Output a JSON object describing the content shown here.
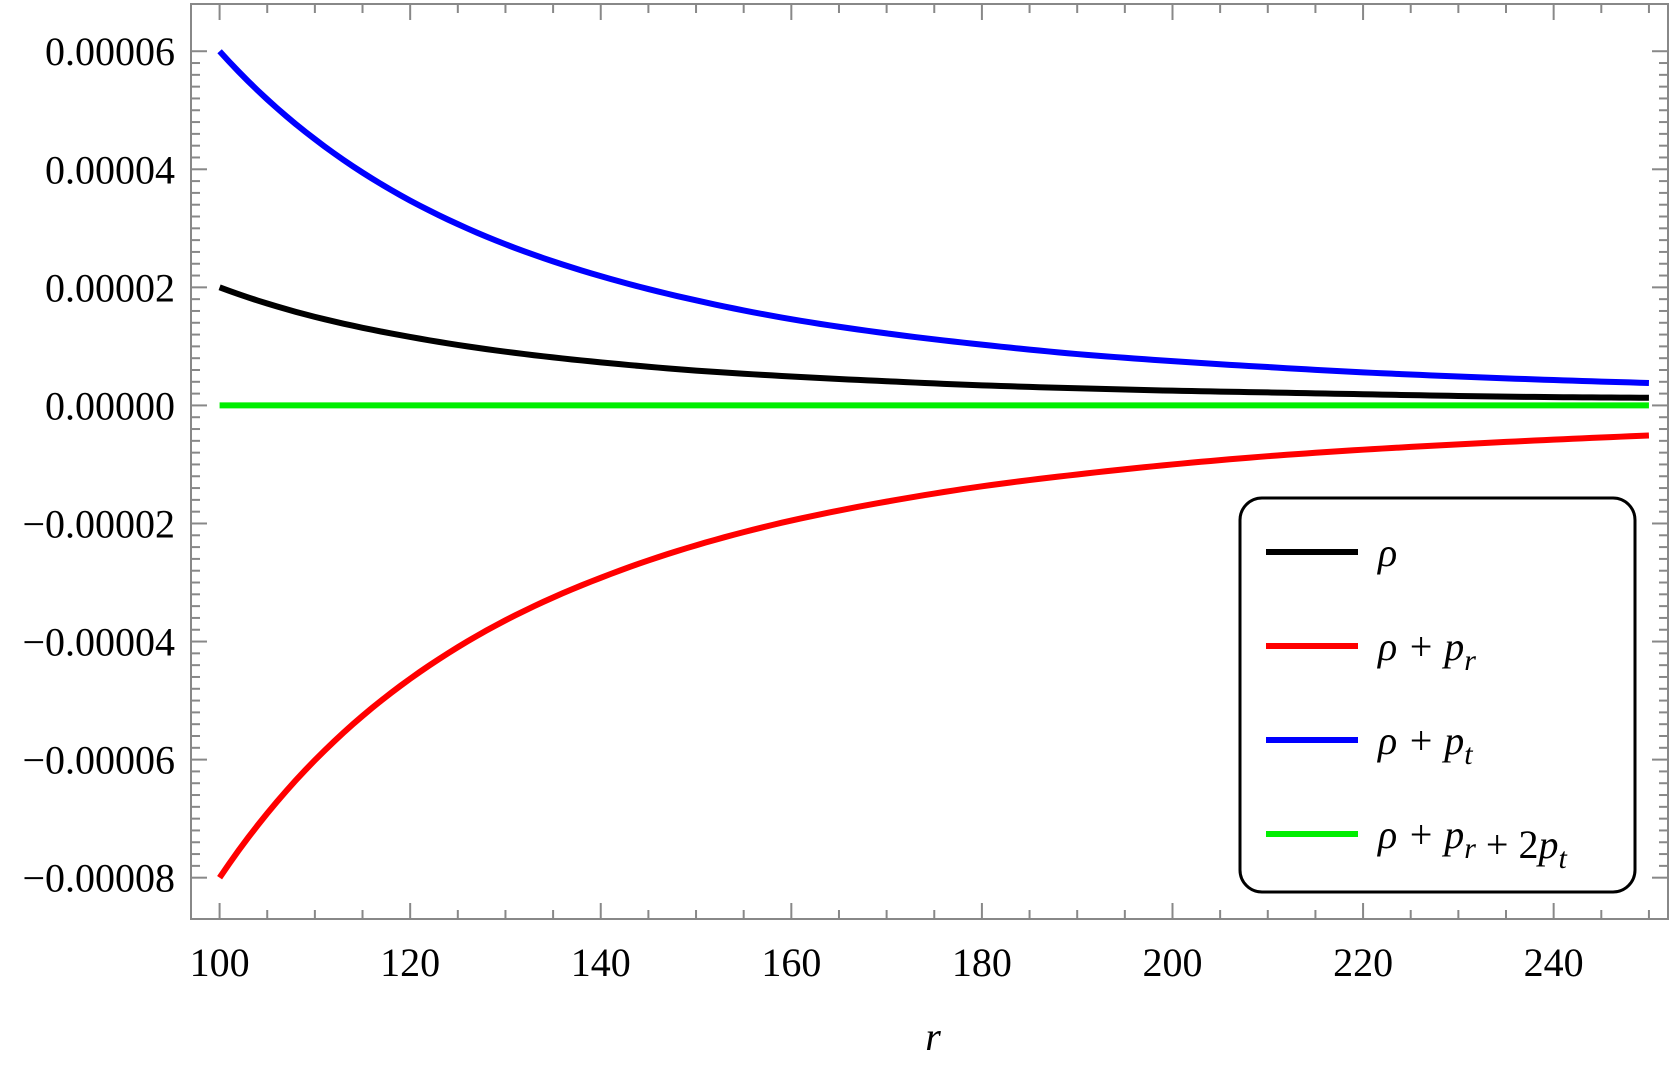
{
  "chart_data": {
    "type": "line",
    "title": "",
    "xlabel": "r",
    "ylabel": "",
    "xlim": [
      97,
      252
    ],
    "ylim": [
      -8.7e-05,
      6.8e-05
    ],
    "x_ticks": [
      100,
      120,
      140,
      160,
      180,
      200,
      220,
      240
    ],
    "x_tick_labels": [
      "100",
      "120",
      "140",
      "160",
      "180",
      "200",
      "220",
      "240"
    ],
    "y_ticks": [
      6e-05,
      4e-05,
      2e-05,
      0.0,
      -2e-05,
      -4e-05,
      -6e-05,
      -8e-05
    ],
    "y_tick_labels": [
      "0.00006",
      "0.00004",
      "0.00002",
      "0.00000",
      "−0.00002",
      "−0.00004",
      "−0.00006",
      "−0.00008"
    ],
    "grid": false,
    "legend_position": "bottom-right",
    "series": [
      {
        "name": "ρ",
        "color": "#000000",
        "x": [
          100,
          110,
          120,
          130,
          140,
          150,
          160,
          170,
          180,
          190,
          200,
          210,
          220,
          230,
          240,
          250
        ],
        "values": [
          2e-05,
          1.5e-05,
          1.16e-05,
          9.1e-06,
          7.3e-06,
          5.9e-06,
          4.9e-06,
          4.1e-06,
          3.4e-06,
          2.9e-06,
          2.5e-06,
          2.2e-06,
          1.9e-06,
          1.6e-06,
          1.4e-06,
          1.3e-06
        ]
      },
      {
        "name": "ρ + p_r",
        "color": "#ff0000",
        "x": [
          100,
          110,
          120,
          130,
          140,
          150,
          160,
          170,
          180,
          190,
          200,
          210,
          220,
          230,
          240,
          250
        ],
        "values": [
          -8e-05,
          -6.01e-05,
          -4.63e-05,
          -3.64e-05,
          -2.92e-05,
          -2.37e-05,
          -1.95e-05,
          -1.63e-05,
          -1.37e-05,
          -1.17e-05,
          -1e-05,
          -8.6e-06,
          -7.5e-06,
          -6.6e-06,
          -5.8e-06,
          -5.1e-06
        ]
      },
      {
        "name": "ρ + p_t",
        "color": "#0000ff",
        "x": [
          100,
          110,
          120,
          130,
          140,
          150,
          160,
          170,
          180,
          190,
          200,
          210,
          220,
          230,
          240,
          250
        ],
        "values": [
          6e-05,
          4.51e-05,
          3.47e-05,
          2.73e-05,
          2.19e-05,
          1.78e-05,
          1.46e-05,
          1.22e-05,
          1.03e-05,
          8.7e-06,
          7.5e-06,
          6.5e-06,
          5.6e-06,
          4.9e-06,
          4.3e-06,
          3.8e-06
        ]
      },
      {
        "name": "ρ + p_r + 2p_t",
        "color": "#00ee00",
        "x": [
          100,
          250
        ],
        "values": [
          0.0,
          0.0
        ]
      }
    ]
  },
  "legend": {
    "items": [
      {
        "main": "ρ",
        "parts": []
      },
      {
        "main": "ρ + ",
        "parts": [
          {
            "p": "p",
            "sub": "r"
          }
        ]
      },
      {
        "main": "ρ + ",
        "parts": [
          {
            "p": "p",
            "sub": "t"
          }
        ]
      },
      {
        "main": "ρ + ",
        "parts": [
          {
            "p": "p",
            "sub": "r"
          },
          {
            "pre": " + 2",
            "p": "p",
            "sub": "t"
          }
        ]
      }
    ]
  }
}
